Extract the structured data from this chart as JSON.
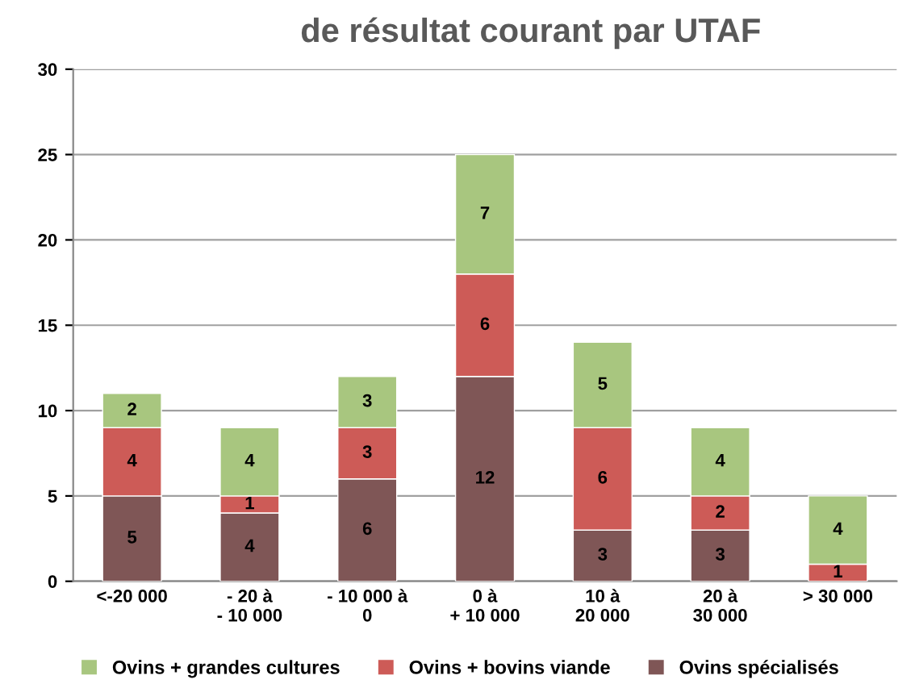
{
  "chart_data": {
    "type": "bar",
    "stacked": true,
    "title": "de résultat courant par UTAF",
    "categories": [
      "<-20 000",
      "- 20 à\n- 10 000",
      "- 10 000 à\n0",
      "0 à\n+ 10 000",
      "10 à\n20 000",
      "20 à\n30 000",
      "> 30 000"
    ],
    "series": [
      {
        "name": "Ovins spécialisés",
        "color": "#7f5656",
        "values": [
          5,
          4,
          6,
          12,
          3,
          3,
          0
        ],
        "value_labels": [
          "5",
          "4",
          "6",
          "12",
          "3",
          "3",
          null
        ]
      },
      {
        "name": "Ovins + bovins viande",
        "color": "#cd5b57",
        "values": [
          4,
          1,
          3,
          6,
          6,
          2,
          1
        ],
        "value_labels": [
          "4",
          "1",
          "3",
          "6",
          "6",
          "2",
          "1"
        ]
      },
      {
        "name": "Ovins + grandes cultures",
        "color": "#a8c67f",
        "values": [
          2,
          4,
          3,
          7,
          5,
          4,
          4
        ],
        "value_labels": [
          "2",
          "4",
          "3",
          "7",
          "5",
          "4",
          "4"
        ]
      }
    ],
    "ylim": [
      0,
      30
    ],
    "yticks": [
      0,
      5,
      10,
      15,
      20,
      25,
      30
    ],
    "grid": "y",
    "legend": "bottom"
  }
}
